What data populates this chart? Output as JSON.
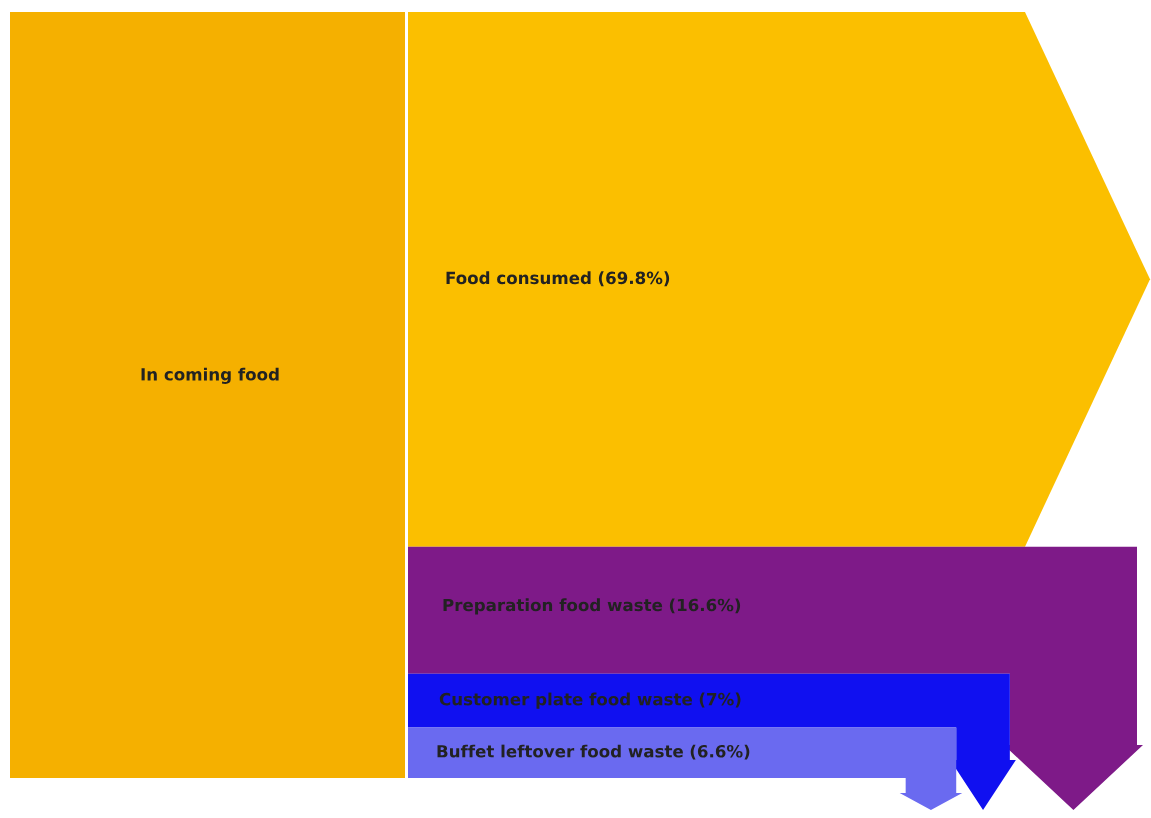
{
  "chart_data": {
    "type": "other",
    "annotations": [
      "In coming food"
    ],
    "categories": [
      "Food consumed",
      "Preparation food waste",
      "Customer plate food waste",
      "Buffet leftover food waste"
    ],
    "values": [
      69.8,
      16.6,
      7,
      6.6
    ],
    "value_labels": [
      "(69.8%)",
      "(16.6%)",
      "(7%)",
      "(6.6%)"
    ],
    "colors": [
      "#fbbf00",
      "#7e1a88",
      "#1010f0",
      "#6a6af0"
    ]
  }
}
